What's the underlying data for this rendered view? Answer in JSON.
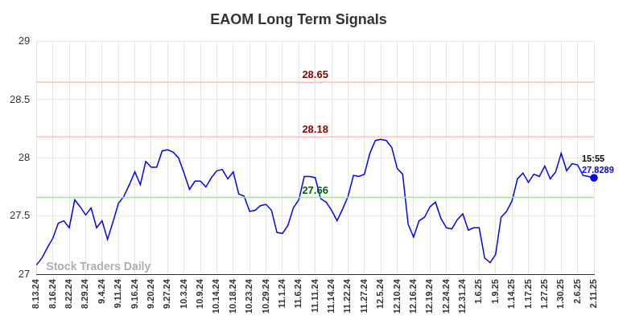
{
  "chart_data": {
    "type": "line",
    "title": "EAOM Long Term Signals",
    "categories": [
      "8.13.24",
      null,
      null,
      "8.16.24",
      null,
      null,
      "8.22.24",
      null,
      null,
      "8.29.24",
      null,
      null,
      "9.4.24",
      null,
      null,
      "9.11.24",
      null,
      null,
      "9.16.24",
      null,
      null,
      "9.20.24",
      null,
      null,
      "9.27.24",
      null,
      null,
      "10.3.24",
      null,
      null,
      "10.9.24",
      null,
      null,
      "10.14.24",
      null,
      null,
      "10.18.24",
      null,
      null,
      "10.23.24",
      null,
      null,
      "10.29.24",
      null,
      null,
      "11.1.24",
      null,
      null,
      "11.6.24",
      null,
      null,
      "11.11.24",
      null,
      null,
      "11.14.24",
      null,
      null,
      "11.22.24",
      null,
      null,
      "11.27.24",
      null,
      null,
      "12.5.24",
      null,
      null,
      "12.10.24",
      null,
      null,
      "12.16.24",
      null,
      null,
      "12.19.24",
      null,
      null,
      "12.24.24",
      null,
      null,
      "12.31.24",
      null,
      null,
      "1.6.25",
      null,
      null,
      "1.9.25",
      null,
      null,
      "1.14.25",
      null,
      null,
      "1.17.25",
      null,
      null,
      "1.27.25",
      null,
      null,
      "1.30.25",
      null,
      null,
      "2.6.25",
      null,
      null,
      "2.11.25"
    ],
    "values": [
      27.08,
      27.14,
      27.23,
      27.31,
      27.44,
      27.46,
      27.4,
      27.64,
      27.58,
      27.51,
      27.57,
      27.4,
      27.46,
      27.3,
      27.45,
      27.61,
      27.67,
      27.77,
      27.88,
      27.77,
      27.97,
      27.92,
      27.92,
      28.06,
      28.07,
      28.05,
      28.0,
      27.87,
      27.73,
      27.8,
      27.8,
      27.75,
      27.83,
      27.89,
      27.9,
      27.82,
      27.88,
      27.69,
      27.67,
      27.54,
      27.55,
      27.59,
      27.6,
      27.55,
      27.36,
      27.35,
      27.42,
      27.57,
      27.64,
      27.84,
      27.84,
      27.83,
      27.65,
      27.62,
      27.55,
      27.46,
      27.56,
      27.67,
      27.85,
      27.84,
      27.86,
      28.04,
      28.15,
      28.16,
      28.15,
      28.09,
      27.91,
      27.86,
      27.43,
      27.32,
      27.46,
      27.49,
      27.58,
      27.62,
      27.48,
      27.4,
      27.39,
      27.47,
      27.52,
      27.38,
      27.4,
      27.4,
      27.14,
      27.1,
      27.17,
      27.49,
      27.54,
      27.63,
      27.82,
      27.87,
      27.79,
      27.86,
      27.84,
      27.93,
      27.82,
      27.88,
      28.04,
      27.89,
      27.95,
      27.94,
      27.85,
      27.84,
      27.8289
    ],
    "color": "#0000ff",
    "ylim": [
      27,
      29
    ],
    "yticks": [
      27,
      27.5,
      28,
      28.5,
      29
    ],
    "grid": true,
    "reference_lines": [
      {
        "value": 28.65,
        "color": "#ffc0c0",
        "label_color": "#8b0000"
      },
      {
        "value": 28.18,
        "color": "#ffc0c0",
        "label_color": "#8b0000"
      },
      {
        "value": 27.66,
        "color": "#90ee90",
        "label_color": "#006400"
      }
    ],
    "annotation": "15:55",
    "watermark": "Stock Traders Daily"
  }
}
